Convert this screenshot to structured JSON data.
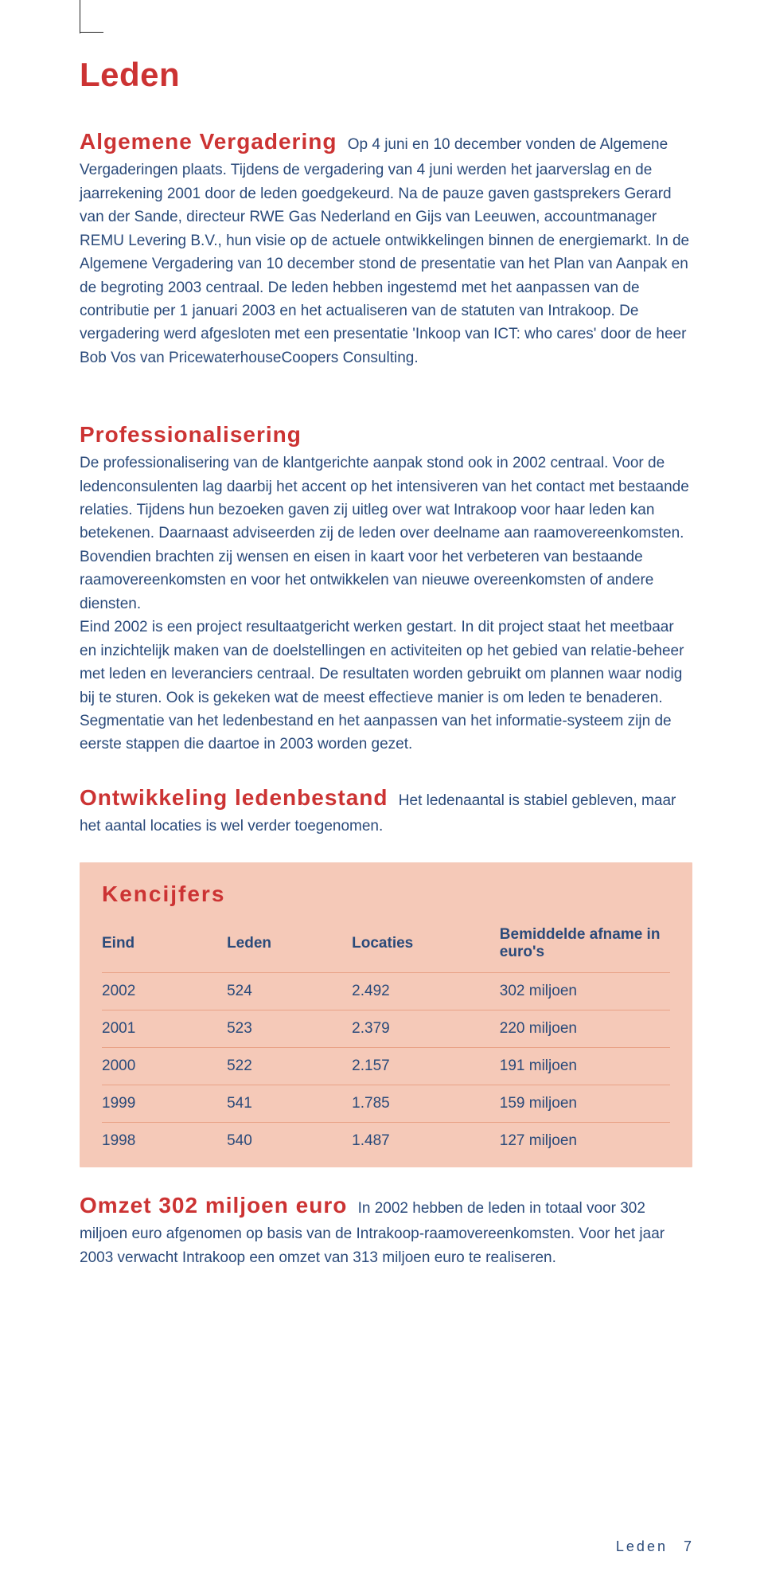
{
  "colors": {
    "accent_red": "#cc3333",
    "body_text": "#2a4a7a",
    "table_bg": "#f5c9b8",
    "table_rule": "#e9a287",
    "page_bg": "#ffffff"
  },
  "typography": {
    "title_fontsize_pt": 32,
    "heading_fontsize_pt": 21,
    "body_fontsize_pt": 14,
    "footer_fontsize_pt": 14,
    "font_family": "Arial"
  },
  "page_title": "Leden",
  "sections": {
    "algemene": {
      "heading": "Algemene Vergadering",
      "body": "Op 4 juni en 10 december vonden de Algemene Vergaderingen plaats. Tijdens de vergadering van 4 juni werden het jaarverslag en de jaarrekening 2001 door de leden goedgekeurd. Na de pauze gaven gastsprekers Gerard van der Sande, directeur RWE Gas Nederland en Gijs van Leeuwen, accountmanager REMU Levering B.V., hun visie op de actuele ontwikkelingen binnen de energiemarkt. In de Algemene Vergadering van 10 december stond de presentatie van het Plan van Aanpak en de begroting 2003 centraal. De leden hebben ingestemd met het aanpassen van de contributie per 1 januari 2003 en het actualiseren van de statuten van Intrakoop. De vergadering werd afgesloten met een presentatie 'Inkoop van ICT: who cares' door de heer Bob Vos van PricewaterhouseCoopers Consulting."
    },
    "professionalisering": {
      "heading": "Professionalisering",
      "body": "De professionalisering van de klantgerichte aanpak stond ook in 2002 centraal. Voor de ledenconsulenten lag daarbij het accent op het intensiveren van het contact met bestaande relaties. Tijdens hun bezoeken gaven zij uitleg over wat Intrakoop voor haar leden kan betekenen. Daarnaast adviseerden zij de leden over deelname aan raamovereenkomsten. Bovendien brachten zij wensen en eisen in kaart voor het verbeteren van bestaande raamovereenkomsten en voor het ontwikkelen van nieuwe overeenkomsten of andere diensten.\nEind 2002 is een project resultaatgericht werken gestart. In dit project staat het meetbaar en inzichtelijk maken van de doelstellingen en activiteiten op het gebied van relatie-beheer met leden en leveranciers centraal. De resultaten worden gebruikt om plannen waar nodig bij te sturen. Ook is gekeken wat de meest effectieve manier is om leden te benaderen. Segmentatie van het ledenbestand en het aanpassen van het informatie-systeem zijn de eerste stappen die daartoe in 2003 worden gezet."
    },
    "ontwikkeling": {
      "heading": "Ontwikkeling ledenbestand",
      "body": "Het ledenaantal is stabiel gebleven, maar het aantal locaties is wel verder toegenomen."
    },
    "omzet": {
      "heading": "Omzet 302 miljoen euro",
      "body": "In 2002 hebben de leden in totaal voor 302 miljoen euro afgenomen op basis van de Intrakoop-raamovereenkomsten. Voor het jaar 2003 verwacht Intrakoop een omzet van 313 miljoen euro te realiseren."
    }
  },
  "table": {
    "type": "table",
    "title": "Kencijfers",
    "background_color": "#f5c9b8",
    "rule_color": "#e9a287",
    "text_color": "#2a4a7a",
    "title_color": "#cc3333",
    "columns": [
      "Eind",
      "Leden",
      "Locaties",
      "Bemiddelde afname in euro's"
    ],
    "column_widths_pct": [
      22,
      22,
      26,
      30
    ],
    "rows": [
      [
        "2002",
        "524",
        "2.492",
        "302 miljoen"
      ],
      [
        "2001",
        "523",
        "2.379",
        "220 miljoen"
      ],
      [
        "2000",
        "522",
        "2.157",
        "191 miljoen"
      ],
      [
        "1999",
        "541",
        "1.785",
        "159 miljoen"
      ],
      [
        "1998",
        "540",
        "1.487",
        "127 miljoen"
      ]
    ]
  },
  "footer": {
    "section_label": "Leden",
    "page_number": "7"
  }
}
